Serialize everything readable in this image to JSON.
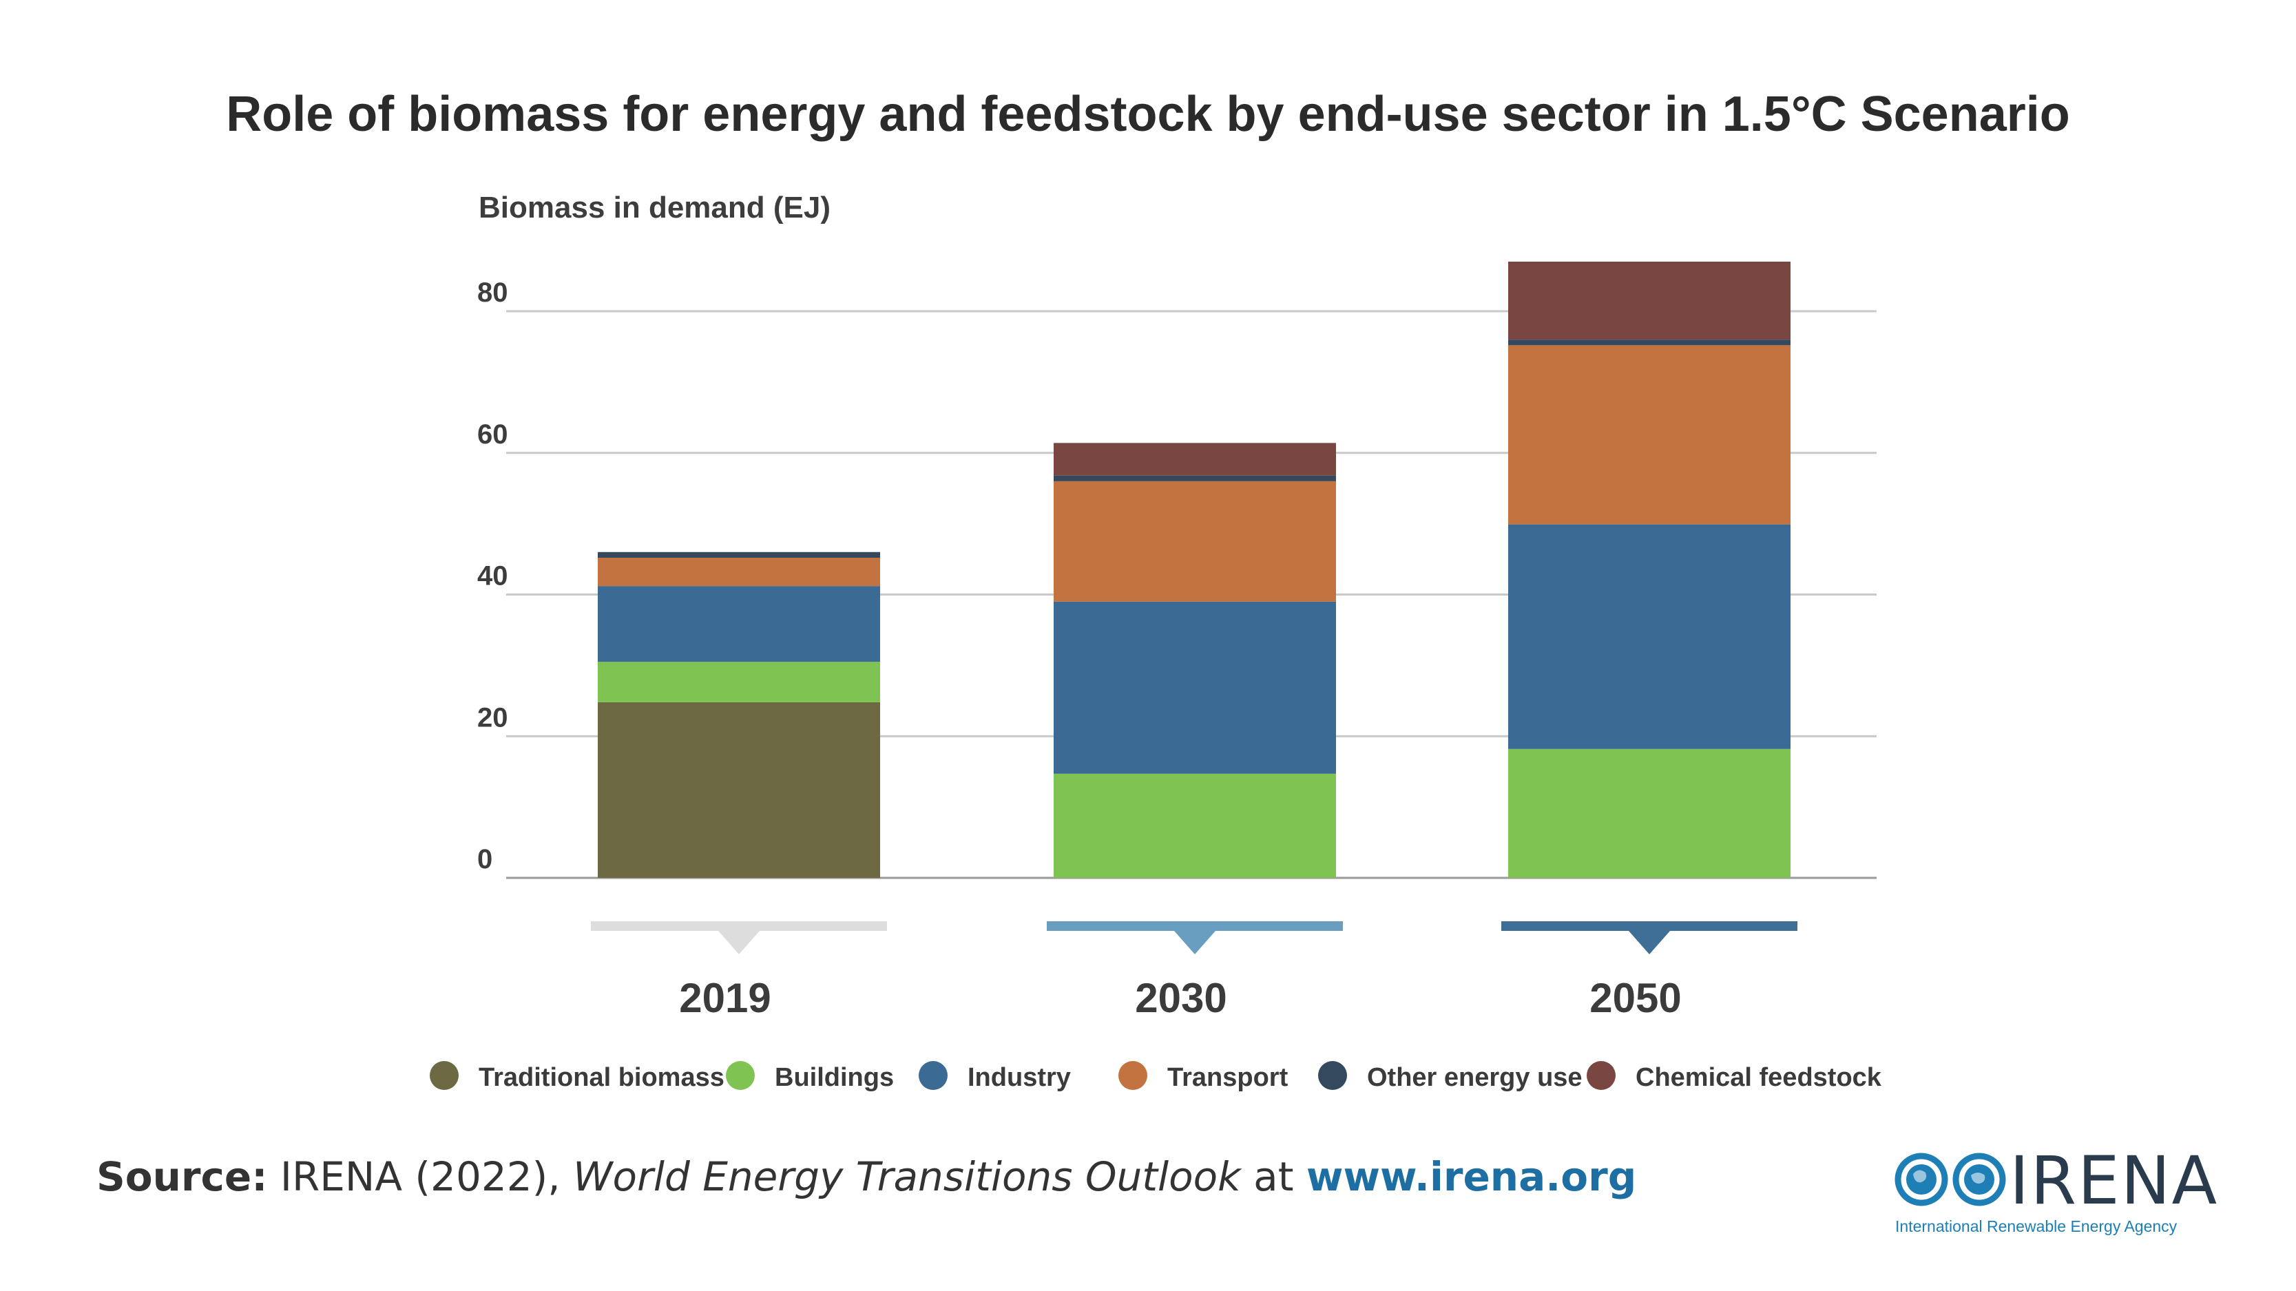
{
  "chart_data": {
    "type": "bar",
    "stacked": true,
    "title": "Role of biomass for energy and feedstock by end-use sector in 1.5°C Scenario",
    "ylabel": "Biomass in demand (EJ)",
    "xlabel": "",
    "ylim": [
      0,
      80
    ],
    "yticks": [
      0,
      20,
      40,
      60,
      80
    ],
    "grid": true,
    "legend_position": "bottom",
    "categories": [
      "2019",
      "2030",
      "2050"
    ],
    "category_marker_colors": [
      "#dddddd",
      "#6a9ec0",
      "#3f6f97"
    ],
    "series": [
      {
        "name": "Traditional biomass",
        "color": "#6d6a43",
        "values": [
          24.8,
          0,
          0
        ]
      },
      {
        "name": "Buildings",
        "color": "#7fc452",
        "values": [
          5.7,
          14.7,
          18.2
        ]
      },
      {
        "name": "Industry",
        "color": "#3b6a94",
        "values": [
          10.7,
          24.3,
          31.7
        ]
      },
      {
        "name": "Transport",
        "color": "#c2733f",
        "values": [
          4.0,
          17.0,
          25.3
        ]
      },
      {
        "name": "Other energy use",
        "color": "#34495e",
        "values": [
          0.8,
          0.8,
          0.8
        ]
      },
      {
        "name": "Chemical feedstock",
        "color": "#7a4641",
        "values": [
          0,
          4.6,
          11.0
        ]
      }
    ]
  },
  "source": {
    "prefix": "Source:",
    "author": "IRENA (2022),",
    "publication": "World Energy Transitions Outlook",
    "connector": "at",
    "url": "www.irena.org"
  },
  "logo": {
    "name": "IRENA",
    "subtitle": "International Renewable Energy Agency",
    "color": "#1d7fb5"
  }
}
